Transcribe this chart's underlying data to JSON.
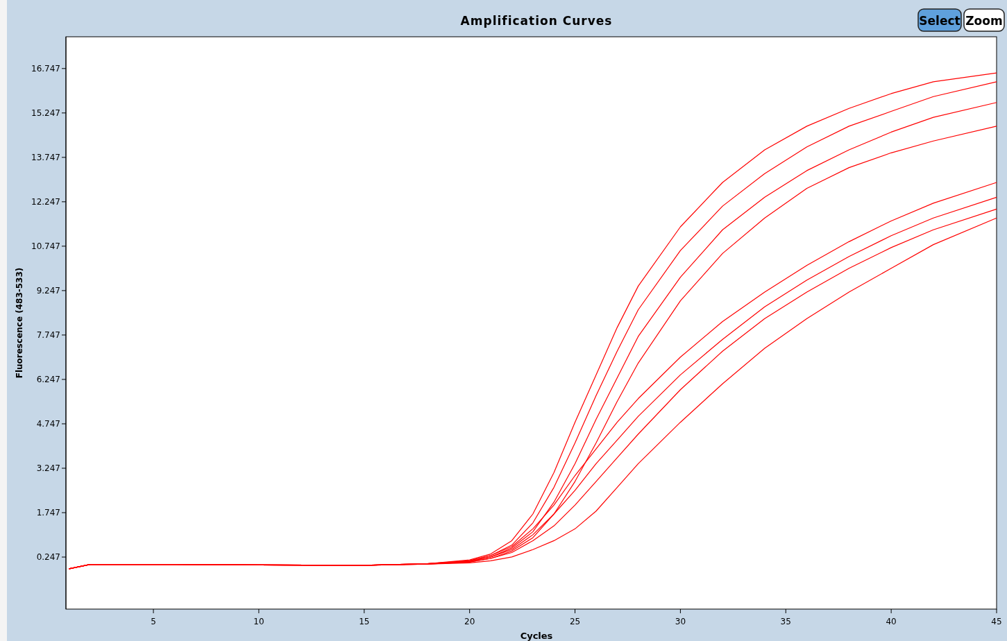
{
  "chart_data": {
    "type": "line",
    "title": "Amplification Curves",
    "xlabel": "Cycles",
    "ylabel": "Fluorescence (483-533)",
    "annotations": [
      "Select",
      "Zoom"
    ],
    "x": [
      1,
      2,
      5,
      10,
      15,
      18,
      20,
      21,
      22,
      23,
      24,
      25,
      26,
      27,
      28,
      30,
      32,
      34,
      36,
      38,
      40,
      42,
      45
    ],
    "xlim": [
      0.85,
      45
    ],
    "xticks": [
      5,
      10,
      15,
      20,
      25,
      30,
      35,
      40,
      45
    ],
    "ylim": [
      -1.51,
      17.82
    ],
    "yticks": [
      0.247,
      1.747,
      3.247,
      4.747,
      6.247,
      7.747,
      9.247,
      10.747,
      12.247,
      13.747,
      15.247,
      16.747
    ],
    "grid": false,
    "marker": "none",
    "line_style": "solid",
    "series": [
      {
        "color": "#ff0000",
        "values": [
          -0.15,
          0.0,
          0.0,
          -0.02,
          -0.03,
          0.02,
          0.15,
          0.35,
          0.8,
          1.7,
          3.1,
          4.8,
          6.4,
          8.0,
          9.4,
          11.4,
          12.9,
          14.0,
          14.8,
          15.4,
          15.9,
          16.3,
          16.6
        ]
      },
      {
        "color": "#ff0000",
        "values": [
          -0.15,
          0.0,
          0.0,
          -0.02,
          -0.03,
          0.02,
          0.12,
          0.3,
          0.65,
          1.4,
          2.6,
          4.1,
          5.7,
          7.2,
          8.6,
          10.6,
          12.1,
          13.2,
          14.1,
          14.8,
          15.3,
          15.8,
          16.3
        ]
      },
      {
        "color": "#ff0000",
        "values": [
          -0.15,
          0.0,
          0.0,
          -0.02,
          -0.03,
          0.02,
          0.1,
          0.25,
          0.55,
          1.1,
          2.1,
          3.4,
          4.9,
          6.3,
          7.7,
          9.7,
          11.3,
          12.4,
          13.3,
          14.0,
          14.6,
          15.1,
          15.6
        ]
      },
      {
        "color": "#ff0000",
        "values": [
          -0.15,
          0.0,
          0.0,
          -0.02,
          -0.03,
          0.01,
          0.08,
          0.2,
          0.45,
          0.9,
          1.7,
          2.8,
          4.1,
          5.5,
          6.8,
          8.9,
          10.5,
          11.7,
          12.7,
          13.4,
          13.9,
          14.3,
          14.8
        ]
      },
      {
        "color": "#ff0000",
        "values": [
          -0.15,
          0.0,
          0.0,
          -0.02,
          -0.03,
          0.02,
          0.12,
          0.3,
          0.6,
          1.2,
          2.0,
          3.0,
          3.9,
          4.8,
          5.6,
          7.0,
          8.2,
          9.2,
          10.1,
          10.9,
          11.6,
          12.2,
          12.9
        ]
      },
      {
        "color": "#ff0000",
        "values": [
          -0.15,
          0.0,
          0.0,
          -0.02,
          -0.03,
          0.02,
          0.1,
          0.25,
          0.5,
          1.0,
          1.7,
          2.5,
          3.4,
          4.2,
          5.0,
          6.4,
          7.6,
          8.7,
          9.6,
          10.4,
          11.1,
          11.7,
          12.4
        ]
      },
      {
        "color": "#ff0000",
        "values": [
          -0.15,
          0.0,
          0.0,
          -0.02,
          -0.03,
          0.01,
          0.08,
          0.2,
          0.4,
          0.8,
          1.3,
          2.0,
          2.8,
          3.6,
          4.4,
          5.9,
          7.2,
          8.3,
          9.2,
          10.0,
          10.7,
          11.3,
          12.0
        ]
      },
      {
        "color": "#ff0000",
        "values": [
          -0.15,
          0.0,
          0.0,
          -0.02,
          -0.03,
          0.01,
          0.05,
          0.12,
          0.25,
          0.5,
          0.8,
          1.2,
          1.8,
          2.6,
          3.4,
          4.8,
          6.1,
          7.3,
          8.3,
          9.2,
          10.0,
          10.8,
          11.7
        ]
      }
    ]
  }
}
